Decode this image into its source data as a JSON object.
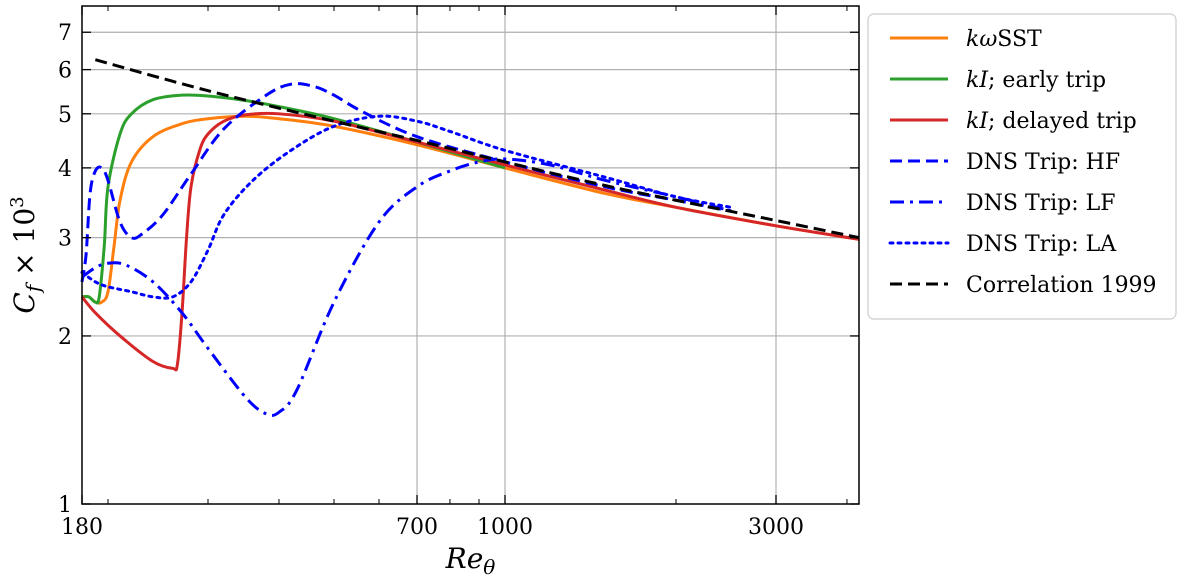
{
  "chart_data": {
    "type": "line",
    "xlabel": "Re_θ",
    "ylabel": "C_f × 10^3",
    "xscale": "log",
    "yscale": "log",
    "xlim": [
      180,
      4200
    ],
    "ylim": [
      1,
      7.8
    ],
    "xticks": [
      180,
      700,
      1000,
      3000
    ],
    "xtick_labels": [
      "180",
      "700",
      "1000",
      "3000"
    ],
    "yticks": [
      1,
      2,
      3,
      4,
      5,
      6,
      7
    ],
    "ytick_labels": [
      "1",
      "2",
      "3",
      "4",
      "5",
      "6",
      "7"
    ],
    "grid": true,
    "legend_position": "outside-right",
    "series": [
      {
        "name": "kωSST",
        "color": "#ff7f0e",
        "style": "solid",
        "x": [
          180,
          185,
          190,
          195,
          200,
          205,
          210,
          220,
          240,
          270,
          300,
          350,
          400,
          500,
          700,
          1000,
          1500,
          2000,
          3000,
          4200
        ],
        "y": [
          2.35,
          2.35,
          2.3,
          2.3,
          2.4,
          2.9,
          3.5,
          4.1,
          4.55,
          4.8,
          4.9,
          4.95,
          4.9,
          4.75,
          4.4,
          4.0,
          3.6,
          3.4,
          3.15,
          2.98
        ]
      },
      {
        "name": "kI; early trip",
        "color": "#2ca02c",
        "style": "solid",
        "x": [
          180,
          185,
          190,
          193,
          197,
          200,
          210,
          220,
          240,
          270,
          300,
          350,
          400,
          500,
          700,
          1000
        ],
        "y": [
          2.35,
          2.35,
          2.3,
          2.35,
          2.9,
          3.7,
          4.6,
          5.0,
          5.3,
          5.4,
          5.38,
          5.28,
          5.15,
          4.9,
          4.45,
          4.0
        ]
      },
      {
        "name": "kI; delayed trip",
        "color": "#d62728",
        "style": "solid",
        "x": [
          180,
          190,
          210,
          240,
          260,
          265,
          270,
          275,
          280,
          290,
          300,
          320,
          350,
          400,
          500,
          700,
          1000,
          1500,
          2000,
          3000,
          4200
        ],
        "y": [
          2.35,
          2.2,
          2.0,
          1.8,
          1.75,
          1.78,
          2.2,
          3.0,
          3.7,
          4.3,
          4.6,
          4.85,
          4.98,
          5.0,
          4.85,
          4.45,
          4.05,
          3.65,
          3.4,
          3.15,
          2.98
        ]
      },
      {
        "name": "DNS Trip: HF",
        "color": "#0000ff",
        "style": "dashed",
        "x": [
          180,
          183,
          186,
          190,
          195,
          200,
          210,
          220,
          230,
          250,
          280,
          320,
          380,
          420,
          460,
          500,
          560,
          700,
          1000,
          1500,
          2000,
          2500
        ],
        "y": [
          2.5,
          2.8,
          3.6,
          3.95,
          4.0,
          3.8,
          3.2,
          3.0,
          3.05,
          3.3,
          3.9,
          4.7,
          5.4,
          5.65,
          5.6,
          5.4,
          5.05,
          4.55,
          4.1,
          3.7,
          3.5,
          3.35
        ]
      },
      {
        "name": "DNS Trip: LF",
        "color": "#0000ff",
        "style": "dashdot",
        "x": [
          180,
          190,
          200,
          215,
          240,
          270,
          300,
          350,
          380,
          400,
          430,
          500,
          600,
          700,
          800,
          900,
          1000,
          1200,
          1500,
          2000,
          2500
        ],
        "y": [
          2.55,
          2.65,
          2.7,
          2.68,
          2.5,
          2.2,
          1.9,
          1.55,
          1.45,
          1.46,
          1.6,
          2.3,
          3.2,
          3.7,
          3.95,
          4.1,
          4.15,
          4.05,
          3.8,
          3.55,
          3.35
        ]
      },
      {
        "name": "DNS Trip: LA",
        "color": "#0000ff",
        "style": "dotted",
        "x": [
          180,
          190,
          200,
          220,
          240,
          260,
          280,
          300,
          320,
          360,
          420,
          500,
          600,
          700,
          800,
          1000,
          1500,
          2000,
          2500
        ],
        "y": [
          2.6,
          2.5,
          2.45,
          2.4,
          2.35,
          2.35,
          2.5,
          2.85,
          3.3,
          3.8,
          4.3,
          4.75,
          4.95,
          4.85,
          4.65,
          4.3,
          3.85,
          3.55,
          3.4
        ]
      },
      {
        "name": "Correlation 1999",
        "color": "#000000",
        "style": "dashed",
        "x": [
          190,
          300,
          500,
          700,
          1000,
          1500,
          2000,
          3000,
          4200
        ],
        "y": [
          6.25,
          5.5,
          4.85,
          4.48,
          4.1,
          3.72,
          3.5,
          3.22,
          3.0
        ]
      }
    ]
  }
}
